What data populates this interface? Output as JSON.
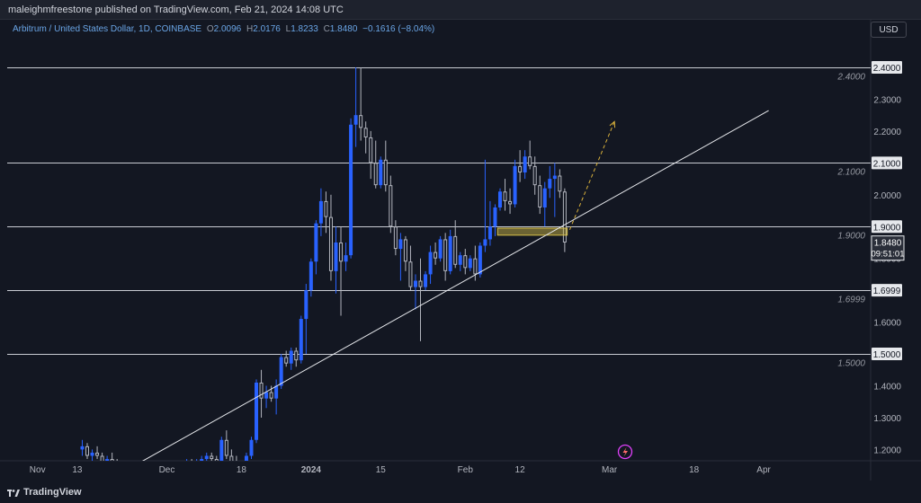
{
  "header": {
    "published_by": "maleighmfreestone published on TradingView.com, Feb 21, 2024 14:08 UTC"
  },
  "symbol": {
    "name": "Arbitrum / United States Dollar, 1D, COINBASE",
    "open_label": "O",
    "open": "2.0096",
    "high_label": "H",
    "high": "2.0176",
    "low_label": "L",
    "low": "1.8233",
    "close_label": "C",
    "close": "1.8480",
    "change": "−0.1616 (−8.04%)"
  },
  "currency_button": "USD",
  "footer": {
    "brand": "TradingView"
  },
  "colors": {
    "background": "#131722",
    "bull": "#2962ff",
    "bear": "#b2b5be",
    "zone": "#d8c14a",
    "projection": "#d9b13b",
    "alert": "#e040fb"
  },
  "chart_data": {
    "type": "candlestick",
    "symbol": "ARB/USD",
    "interval": "1D",
    "y_axis_labels": [
      "2.4000",
      "2.3000",
      "2.2000",
      "2.1000",
      "2.0000",
      "1.9000",
      "1.8000",
      "1.7000",
      "1.6000",
      "1.5000",
      "1.4000",
      "1.3000",
      "1.2000"
    ],
    "x_axis_labels": [
      {
        "text": "Nov",
        "idx": -9
      },
      {
        "text": "13",
        "idx": -1
      },
      {
        "text": "Dec",
        "idx": 17
      },
      {
        "text": "18",
        "idx": 32
      },
      {
        "text": "2024",
        "idx": 46
      },
      {
        "text": "15",
        "idx": 60
      },
      {
        "text": "Feb",
        "idx": 77
      },
      {
        "text": "12",
        "idx": 88
      },
      {
        "text": "Mar",
        "idx": 106
      },
      {
        "text": "18",
        "idx": 123
      },
      {
        "text": "Apr",
        "idx": 137
      }
    ],
    "horizontal_levels": [
      {
        "value": 2.4,
        "label": "2.4000",
        "axis_tag": "2.4000"
      },
      {
        "value": 2.1,
        "label": "2.1000",
        "axis_tag": "2.1000"
      },
      {
        "value": 1.9,
        "label": "1.9000",
        "axis_tag": "1.9000"
      },
      {
        "value": 1.6999,
        "label": "1.6999",
        "axis_tag": "1.6999"
      },
      {
        "value": 1.5,
        "label": "1.5000",
        "axis_tag": "1.5000"
      }
    ],
    "last_price": {
      "value": "1.8480",
      "countdown": "09:51:01"
    },
    "trendline": [
      {
        "idx": 11,
        "value": 1.1538
      },
      {
        "idx": 138,
        "value": 2.2643
      }
    ],
    "zone": {
      "idx_start": 83.5,
      "idx_end": 97.5,
      "top": 1.895,
      "bottom": 1.873
    },
    "projection": [
      {
        "idx": 98,
        "value": 1.89
      },
      {
        "idx": 107,
        "value": 2.23
      }
    ],
    "candles": [
      [
        0,
        1.2,
        1.23,
        1.18,
        1.21
      ],
      [
        1,
        1.21,
        1.22,
        1.17,
        1.18
      ],
      [
        2,
        1.18,
        1.2,
        1.16,
        1.19
      ],
      [
        3,
        1.19,
        1.21,
        1.17,
        1.18
      ],
      [
        4,
        1.18,
        1.19,
        1.15,
        1.16
      ],
      [
        5,
        1.16,
        1.18,
        1.14,
        1.17
      ],
      [
        6,
        1.17,
        1.19,
        1.15,
        1.16
      ],
      [
        7,
        1.16,
        1.17,
        1.13,
        1.15
      ],
      [
        8,
        1.15,
        1.16,
        1.12,
        1.14
      ],
      [
        9,
        1.14,
        1.16,
        1.12,
        1.15
      ],
      [
        10,
        1.15,
        1.16,
        1.12,
        1.13
      ],
      [
        11,
        1.13,
        1.14,
        1.1,
        1.12
      ],
      [
        12,
        1.12,
        1.14,
        1.1,
        1.13
      ],
      [
        13,
        1.13,
        1.14,
        1.11,
        1.12
      ],
      [
        14,
        1.12,
        1.13,
        1.1,
        1.11
      ],
      [
        15,
        1.11,
        1.13,
        1.09,
        1.12
      ],
      [
        16,
        1.12,
        1.14,
        1.1,
        1.13
      ],
      [
        17,
        1.13,
        1.14,
        1.11,
        1.12
      ],
      [
        18,
        1.12,
        1.14,
        1.1,
        1.13
      ],
      [
        19,
        1.13,
        1.15,
        1.11,
        1.14
      ],
      [
        20,
        1.14,
        1.16,
        1.12,
        1.15
      ],
      [
        21,
        1.15,
        1.17,
        1.13,
        1.16
      ],
      [
        22,
        1.16,
        1.17,
        1.14,
        1.15
      ],
      [
        23,
        1.15,
        1.17,
        1.13,
        1.16
      ],
      [
        24,
        1.16,
        1.18,
        1.14,
        1.17
      ],
      [
        25,
        1.17,
        1.19,
        1.15,
        1.18
      ],
      [
        26,
        1.18,
        1.19,
        1.16,
        1.17
      ],
      [
        27,
        1.17,
        1.18,
        1.15,
        1.16
      ],
      [
        28,
        1.16,
        1.24,
        1.15,
        1.23
      ],
      [
        29,
        1.23,
        1.26,
        1.17,
        1.18
      ],
      [
        30,
        1.18,
        1.2,
        1.15,
        1.16
      ],
      [
        31,
        1.16,
        1.18,
        1.13,
        1.14
      ],
      [
        32,
        1.14,
        1.16,
        1.12,
        1.15
      ],
      [
        33,
        1.15,
        1.19,
        1.14,
        1.18
      ],
      [
        34,
        1.18,
        1.24,
        1.17,
        1.23
      ],
      [
        35,
        1.23,
        1.42,
        1.22,
        1.41
      ],
      [
        36,
        1.41,
        1.45,
        1.3,
        1.36
      ],
      [
        37,
        1.36,
        1.4,
        1.33,
        1.38
      ],
      [
        38,
        1.38,
        1.4,
        1.35,
        1.36
      ],
      [
        39,
        1.36,
        1.42,
        1.31,
        1.4
      ],
      [
        40,
        1.4,
        1.5,
        1.39,
        1.49
      ],
      [
        41,
        1.49,
        1.51,
        1.46,
        1.47
      ],
      [
        42,
        1.47,
        1.52,
        1.45,
        1.51
      ],
      [
        43,
        1.51,
        1.52,
        1.46,
        1.48
      ],
      [
        44,
        1.48,
        1.62,
        1.47,
        1.61
      ],
      [
        45,
        1.61,
        1.72,
        1.5,
        1.7
      ],
      [
        46,
        1.7,
        1.8,
        1.68,
        1.79
      ],
      [
        47,
        1.79,
        1.92,
        1.75,
        1.91
      ],
      [
        48,
        1.91,
        2.02,
        1.87,
        1.98
      ],
      [
        49,
        1.98,
        2.01,
        1.88,
        1.93
      ],
      [
        50,
        1.93,
        2.0,
        1.73,
        1.76
      ],
      [
        51,
        1.76,
        1.9,
        1.69,
        1.85
      ],
      [
        52,
        1.85,
        1.9,
        1.62,
        1.79
      ],
      [
        53,
        1.79,
        1.85,
        1.76,
        1.81
      ],
      [
        54,
        1.81,
        2.24,
        1.8,
        2.22
      ],
      [
        55,
        2.22,
        2.4,
        2.15,
        2.25
      ],
      [
        56,
        2.25,
        2.4,
        2.17,
        2.21
      ],
      [
        57,
        2.21,
        2.23,
        2.13,
        2.18
      ],
      [
        58,
        2.18,
        2.2,
        2.05,
        2.1
      ],
      [
        59,
        2.1,
        2.17,
        2.02,
        2.03
      ],
      [
        60,
        2.03,
        2.12,
        2.02,
        2.11
      ],
      [
        61,
        2.11,
        2.17,
        2.01,
        2.03
      ],
      [
        62,
        2.03,
        2.06,
        1.88,
        1.9
      ],
      [
        63,
        1.9,
        1.92,
        1.81,
        1.83
      ],
      [
        64,
        1.83,
        1.88,
        1.73,
        1.86
      ],
      [
        65,
        1.86,
        1.87,
        1.76,
        1.79
      ],
      [
        66,
        1.79,
        1.84,
        1.7,
        1.71
      ],
      [
        67,
        1.71,
        1.75,
        1.64,
        1.73
      ],
      [
        68,
        1.73,
        1.8,
        1.54,
        1.71
      ],
      [
        69,
        1.71,
        1.76,
        1.7,
        1.75
      ],
      [
        70,
        1.75,
        1.84,
        1.72,
        1.82
      ],
      [
        71,
        1.82,
        1.85,
        1.78,
        1.8
      ],
      [
        72,
        1.8,
        1.87,
        1.79,
        1.86
      ],
      [
        73,
        1.86,
        1.88,
        1.73,
        1.76
      ],
      [
        74,
        1.76,
        1.89,
        1.75,
        1.87
      ],
      [
        75,
        1.87,
        1.92,
        1.77,
        1.78
      ],
      [
        76,
        1.78,
        1.82,
        1.76,
        1.81
      ],
      [
        77,
        1.81,
        1.83,
        1.75,
        1.77
      ],
      [
        78,
        1.77,
        1.81,
        1.76,
        1.8
      ],
      [
        79,
        1.8,
        1.84,
        1.73,
        1.75
      ],
      [
        80,
        1.75,
        1.85,
        1.74,
        1.84
      ],
      [
        81,
        1.84,
        2.11,
        1.82,
        1.86
      ],
      [
        82,
        1.86,
        1.98,
        1.84,
        1.9
      ],
      [
        83,
        1.9,
        1.97,
        1.87,
        1.96
      ],
      [
        84,
        1.96,
        2.02,
        1.95,
        2.01
      ],
      [
        85,
        2.01,
        2.05,
        1.95,
        1.98
      ],
      [
        86,
        1.98,
        2.02,
        1.94,
        1.97
      ],
      [
        87,
        1.97,
        2.11,
        1.96,
        2.09
      ],
      [
        88,
        2.09,
        2.14,
        2.04,
        2.07
      ],
      [
        89,
        2.07,
        2.14,
        2.05,
        2.12
      ],
      [
        90,
        2.12,
        2.17,
        2.08,
        2.09
      ],
      [
        91,
        2.09,
        2.12,
        2.0,
        2.03
      ],
      [
        92,
        2.03,
        2.06,
        1.94,
        1.96
      ],
      [
        93,
        1.96,
        2.04,
        1.9,
        2.02
      ],
      [
        94,
        2.02,
        2.09,
        1.99,
        2.05
      ],
      [
        95,
        2.05,
        2.1,
        1.93,
        2.06
      ],
      [
        96,
        2.06,
        2.08,
        1.99,
        2.01
      ],
      [
        97,
        2.01,
        2.02,
        1.82,
        1.85
      ]
    ]
  }
}
